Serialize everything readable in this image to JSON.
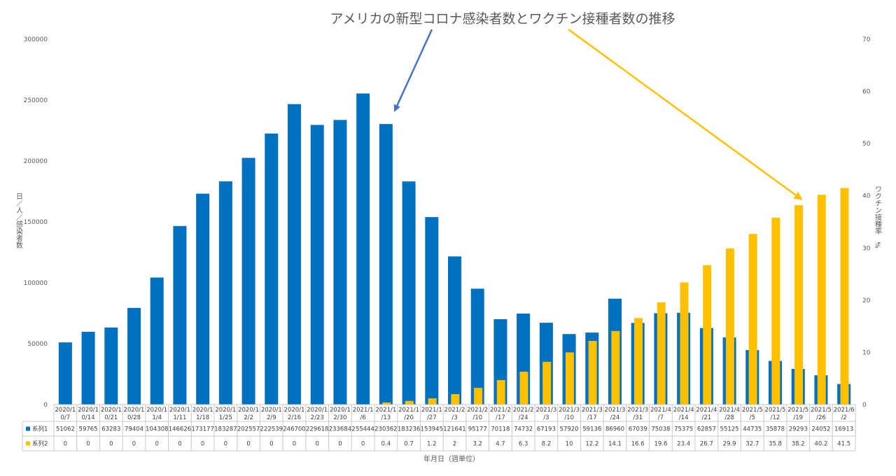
{
  "chart_data": {
    "type": "bar",
    "title": "アメリカの新型コロナ感染者数とワクチン接種者数の推移",
    "xlabel": "年月日（週単位）",
    "ylabel_left": "日／人／感染者数",
    "ylabel_right": "ワクチン接種率　%",
    "ylim_left": [
      0,
      300000
    ],
    "yticks_left": [
      "0",
      "50000",
      "100000",
      "150000",
      "200000",
      "250000",
      "300000"
    ],
    "ylim_right": [
      0,
      70
    ],
    "yticks_right": [
      "0",
      "10",
      "20",
      "30",
      "40",
      "50",
      "60",
      "70"
    ],
    "categories": [
      "2020/10/7",
      "2020/10/14",
      "2020/10/21",
      "2020/10/28",
      "2020/11/4",
      "2020/11/11",
      "2020/11/18",
      "2020/11/25",
      "2020/12/2",
      "2020/12/9",
      "2020/12/16",
      "2020/12/23",
      "2020/12/30",
      "2021/1/6",
      "2021/1/13",
      "2021/1/20",
      "2021/1/27",
      "2021/2/3",
      "2021/2/10",
      "2021/2/17",
      "2021/2/24",
      "2021/3/3",
      "2021/3/10",
      "2021/3/17",
      "2021/3/24",
      "2021/3/31",
      "2021/4/7",
      "2021/4/14",
      "2021/4/21",
      "2021/4/28",
      "2021/5/5",
      "2021/5/12",
      "2021/5/19",
      "2021/5/26",
      "2021/6/2"
    ],
    "category_lines": [
      [
        "2020/1",
        "0/7"
      ],
      [
        "2020/1",
        "0/14"
      ],
      [
        "2020/1",
        "0/21"
      ],
      [
        "2020/1",
        "0/28"
      ],
      [
        "2020/1",
        "1/4"
      ],
      [
        "2020/1",
        "1/11"
      ],
      [
        "2020/1",
        "1/18"
      ],
      [
        "2020/1",
        "1/25"
      ],
      [
        "2020/1",
        "2/2"
      ],
      [
        "2020/1",
        "2/9"
      ],
      [
        "2020/1",
        "2/16"
      ],
      [
        "2020/1",
        "2/23"
      ],
      [
        "2020/1",
        "2/30"
      ],
      [
        "2021/1",
        "/6"
      ],
      [
        "2021/1",
        "/13"
      ],
      [
        "2021/1",
        "/20"
      ],
      [
        "2021/1",
        "/27"
      ],
      [
        "2021/2",
        "/3"
      ],
      [
        "2021/2",
        "/10"
      ],
      [
        "2021/2",
        "/17"
      ],
      [
        "2021/2",
        "/24"
      ],
      [
        "2021/3",
        "/3"
      ],
      [
        "2021/3",
        "/10"
      ],
      [
        "2021/3",
        "/17"
      ],
      [
        "2021/3",
        "/24"
      ],
      [
        "2021/3",
        "/31"
      ],
      [
        "2021/4",
        "/7"
      ],
      [
        "2021/4",
        "/14"
      ],
      [
        "2021/4",
        "/21"
      ],
      [
        "2021/4",
        "/28"
      ],
      [
        "2021/5",
        "/5"
      ],
      [
        "2021/5",
        "/12"
      ],
      [
        "2021/5",
        "/19"
      ],
      [
        "2021/5",
        "/26"
      ],
      [
        "2021/6",
        "/2"
      ]
    ],
    "series": [
      {
        "name": "系列1",
        "axis": "left",
        "color": "#0070c0",
        "values": [
          51062,
          59765,
          63283,
          79404,
          104308,
          146626,
          173177,
          183287,
          202557,
          222539,
          246700,
          229618,
          233684,
          255444,
          230362,
          183236,
          153945,
          121641,
          95177,
          70118,
          74732,
          67193,
          57920,
          59136,
          86960,
          67039,
          75038,
          75375,
          62857,
          55125,
          44735,
          35878,
          29293,
          24052,
          16913
        ]
      },
      {
        "name": "系列2",
        "axis": "right",
        "color": "#ffc000",
        "values": [
          0,
          0,
          0,
          0,
          0,
          0,
          0,
          0,
          0,
          0,
          0,
          0,
          0,
          0,
          0.4,
          0.7,
          1.2,
          2,
          3.2,
          4.7,
          6.3,
          8.2,
          10,
          12.2,
          14.1,
          16.6,
          19.6,
          23.4,
          26.7,
          29.9,
          32.7,
          35.8,
          38.2,
          40.2,
          41.5
        ]
      }
    ],
    "annotations": [
      {
        "type": "arrow",
        "color": "#4472c4",
        "points_to": "2021/1/13"
      },
      {
        "type": "arrow",
        "color": "#ffc000",
        "points_to": "2021/5/19"
      }
    ],
    "grid": false,
    "legend": "data-table"
  }
}
